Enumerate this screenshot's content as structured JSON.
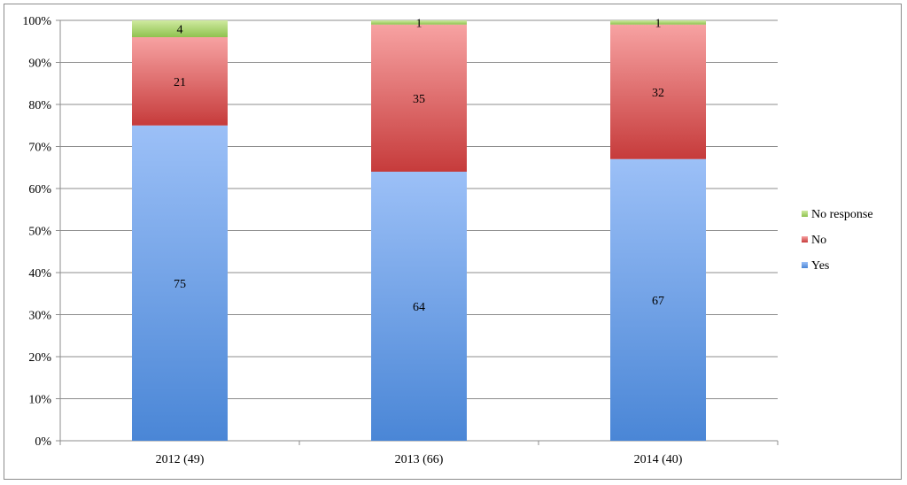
{
  "chart_data": {
    "type": "bar",
    "stacked": true,
    "percent_stacked": true,
    "categories": [
      "2012 (49)",
      "2013 (66)",
      "2014 (40)"
    ],
    "series": [
      {
        "name": "Yes",
        "values": [
          75,
          64,
          67
        ],
        "color": "#4a86d6",
        "color_light": "#9cc0f7"
      },
      {
        "name": "No",
        "values": [
          21,
          35,
          32
        ],
        "color": "#c63b3b",
        "color_light": "#f7a2a2"
      },
      {
        "name": "No response",
        "values": [
          4,
          1,
          1
        ],
        "color": "#8fc24f",
        "color_light": "#cfeaa0"
      }
    ],
    "y_ticks": [
      "0%",
      "10%",
      "20%",
      "30%",
      "40%",
      "50%",
      "60%",
      "70%",
      "80%",
      "90%",
      "100%"
    ],
    "ylim": [
      0,
      100
    ],
    "grid": true,
    "legend_position": "right",
    "title": "",
    "xlabel": "",
    "ylabel": ""
  }
}
